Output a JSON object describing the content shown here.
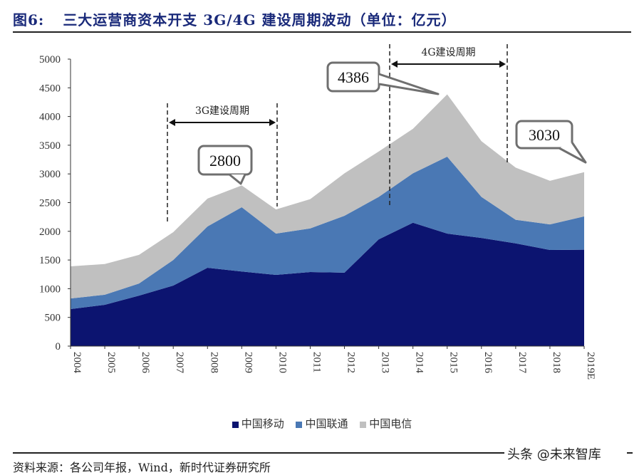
{
  "title": {
    "number": "图6:",
    "text": "三大运营商资本开支 3G/4G 建设周期波动（单位：亿元）"
  },
  "chart_data": {
    "type": "area",
    "stacked": true,
    "categories": [
      "2004",
      "2005",
      "2006",
      "2007",
      "2008",
      "2009",
      "2010",
      "2011",
      "2012",
      "2013",
      "2014",
      "2015",
      "2016",
      "2017",
      "2018",
      "2019E"
    ],
    "series": [
      {
        "name": "中国移动",
        "color": "#0c1470",
        "values": [
          645,
          720,
          880,
          1055,
          1365,
          1300,
          1240,
          1290,
          1280,
          1860,
          2150,
          1960,
          1885,
          1790,
          1675,
          1680
        ]
      },
      {
        "name": "中国联通",
        "color": "#4a78b4",
        "values": [
          185,
          175,
          210,
          445,
          720,
          1120,
          720,
          760,
          990,
          740,
          860,
          1340,
          715,
          410,
          445,
          580
        ]
      },
      {
        "name": "中国电信",
        "color": "#c0c0c0",
        "values": [
          560,
          535,
          500,
          485,
          485,
          380,
          420,
          510,
          740,
          790,
          775,
          1086,
          970,
          910,
          760,
          770
        ]
      }
    ],
    "ylim": [
      0,
      5000
    ],
    "yticks": [
      "0",
      "500",
      "1000",
      "1500",
      "2000",
      "2500",
      "3000",
      "3500",
      "4000",
      "4500",
      "5000"
    ],
    "grid": false,
    "legend": "bottom",
    "annotations": {
      "periods": [
        {
          "label": "3G建设周期",
          "from": "2007",
          "to": "2010"
        },
        {
          "label": "4G建设周期",
          "from": "2013",
          "to": "2016"
        }
      ],
      "callouts": [
        {
          "label": "2800",
          "year": "2009"
        },
        {
          "label": "4386",
          "year": "2015"
        },
        {
          "label": "3030",
          "year": "2019E"
        }
      ]
    }
  },
  "source": "资料来源：各公司年报，Wind，新时代证券研究所",
  "watermark": "头条 @未来智库"
}
